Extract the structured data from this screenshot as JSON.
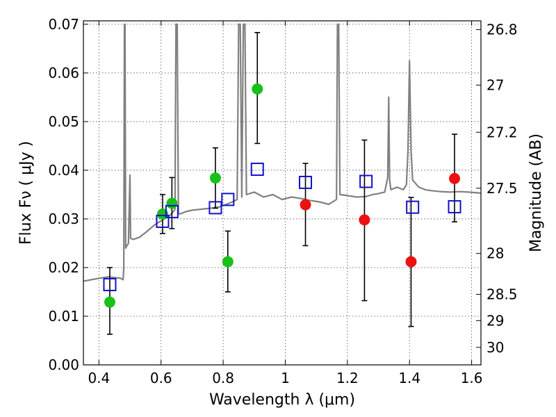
{
  "chart_data": {
    "type": "scatter",
    "xlabel": "Wavelength  λ (μm)",
    "ylabel": "Flux  Fν  ( μJy )",
    "y2label": "Magnitude (AB)",
    "xlim": [
      0.35,
      1.63
    ],
    "ylim": [
      0.0,
      0.0707
    ],
    "grid": true,
    "x_ticks": [
      {
        "value": 0.4,
        "label": "0.4"
      },
      {
        "value": 0.6,
        "label": "0.6"
      },
      {
        "value": 0.8,
        "label": "0.8"
      },
      {
        "value": 1.0,
        "label": "1"
      },
      {
        "value": 1.2,
        "label": "1.2"
      },
      {
        "value": 1.4,
        "label": "1.4"
      },
      {
        "value": 1.6,
        "label": "1.6"
      }
    ],
    "y_ticks": [
      {
        "value": 0.0,
        "label": "0.00"
      },
      {
        "value": 0.01,
        "label": "0.01"
      },
      {
        "value": 0.02,
        "label": "0.02"
      },
      {
        "value": 0.03,
        "label": "0.03"
      },
      {
        "value": 0.04,
        "label": "0.04"
      },
      {
        "value": 0.05,
        "label": "0.05"
      },
      {
        "value": 0.06,
        "label": "0.06"
      },
      {
        "value": 0.07,
        "label": "0.07"
      }
    ],
    "y2_ticks": [
      {
        "flux": 0.0689,
        "label": "26.8"
      },
      {
        "flux": 0.0575,
        "label": "27"
      },
      {
        "flux": 0.0478,
        "label": "27.2"
      },
      {
        "flux": 0.0363,
        "label": "27.5"
      },
      {
        "flux": 0.0229,
        "label": "28"
      },
      {
        "flux": 0.0145,
        "label": "28.5"
      },
      {
        "flux": 0.0091,
        "label": "29"
      },
      {
        "flux": 0.0036,
        "label": "30"
      }
    ],
    "spectrum": {
      "color": "#808080",
      "points": [
        [
          0.35,
          0.0172
        ],
        [
          0.4,
          0.0178
        ],
        [
          0.43,
          0.0181
        ],
        [
          0.47,
          0.0178
        ],
        [
          0.478,
          0.0175
        ],
        [
          0.48,
          0.02
        ],
        [
          0.482,
          0.07
        ],
        [
          0.484,
          0.07
        ],
        [
          0.486,
          0.024
        ],
        [
          0.49,
          0.0245
        ],
        [
          0.495,
          0.025
        ],
        [
          0.5,
          0.039
        ],
        [
          0.502,
          0.026
        ],
        [
          0.51,
          0.0258
        ],
        [
          0.53,
          0.0262
        ],
        [
          0.55,
          0.0272
        ],
        [
          0.58,
          0.0288
        ],
        [
          0.6,
          0.0296
        ],
        [
          0.61,
          0.03
        ],
        [
          0.62,
          0.0305
        ],
        [
          0.63,
          0.0308
        ],
        [
          0.64,
          0.0315
        ],
        [
          0.645,
          0.032
        ],
        [
          0.648,
          0.07
        ],
        [
          0.652,
          0.07
        ],
        [
          0.656,
          0.0312
        ],
        [
          0.66,
          0.031
        ],
        [
          0.68,
          0.0315
        ],
        [
          0.7,
          0.0318
        ],
        [
          0.73,
          0.032
        ],
        [
          0.76,
          0.0322
        ],
        [
          0.79,
          0.0325
        ],
        [
          0.81,
          0.033
        ],
        [
          0.83,
          0.0335
        ],
        [
          0.845,
          0.034
        ],
        [
          0.85,
          0.07
        ],
        [
          0.855,
          0.07
        ],
        [
          0.86,
          0.0345
        ],
        [
          0.865,
          0.07
        ],
        [
          0.87,
          0.07
        ],
        [
          0.875,
          0.035
        ],
        [
          0.9,
          0.0355
        ],
        [
          0.93,
          0.0345
        ],
        [
          0.96,
          0.035
        ],
        [
          0.99,
          0.034
        ],
        [
          1.02,
          0.0345
        ],
        [
          1.05,
          0.0342
        ],
        [
          1.08,
          0.0338
        ],
        [
          1.11,
          0.0335
        ],
        [
          1.14,
          0.033
        ],
        [
          1.165,
          0.034
        ],
        [
          1.168,
          0.07
        ],
        [
          1.172,
          0.07
        ],
        [
          1.176,
          0.035
        ],
        [
          1.2,
          0.0348
        ],
        [
          1.23,
          0.0345
        ],
        [
          1.26,
          0.0346
        ],
        [
          1.28,
          0.035
        ],
        [
          1.3,
          0.0352
        ],
        [
          1.32,
          0.0355
        ],
        [
          1.33,
          0.0385
        ],
        [
          1.333,
          0.055
        ],
        [
          1.336,
          0.038
        ],
        [
          1.34,
          0.036
        ],
        [
          1.36,
          0.0365
        ],
        [
          1.38,
          0.036
        ],
        [
          1.39,
          0.037
        ],
        [
          1.395,
          0.044
        ],
        [
          1.4,
          0.0625
        ],
        [
          1.405,
          0.044
        ],
        [
          1.41,
          0.038
        ],
        [
          1.43,
          0.0365
        ],
        [
          1.45,
          0.036
        ],
        [
          1.47,
          0.0358
        ],
        [
          1.5,
          0.0356
        ],
        [
          1.53,
          0.0355
        ],
        [
          1.56,
          0.0356
        ],
        [
          1.59,
          0.0355
        ],
        [
          1.63,
          0.0353
        ]
      ]
    },
    "series": [
      {
        "marker": "circle",
        "color": "#17c117",
        "points": [
          {
            "x": 0.435,
            "y": 0.0129,
            "err": [
              0.0063,
              0.02
            ]
          },
          {
            "x": 0.605,
            "y": 0.031,
            "err": [
              0.027,
              0.035
            ]
          },
          {
            "x": 0.635,
            "y": 0.0332,
            "err": [
              0.028,
              0.0385
            ]
          },
          {
            "x": 0.775,
            "y": 0.0384,
            "err": [
              0.0322,
              0.0446
            ]
          },
          {
            "x": 0.815,
            "y": 0.0212,
            "err": [
              0.015,
              0.0275
            ]
          },
          {
            "x": 0.91,
            "y": 0.0567,
            "err": [
              0.0455,
              0.0683
            ]
          }
        ]
      },
      {
        "marker": "circle",
        "color": "#ee1111",
        "points": [
          {
            "x": 1.065,
            "y": 0.0329,
            "err": [
              0.0245,
              0.0414
            ]
          },
          {
            "x": 1.255,
            "y": 0.0298,
            "err": [
              0.0132,
              0.0462
            ]
          },
          {
            "x": 1.405,
            "y": 0.0212,
            "err": [
              0.0079,
              0.0344
            ]
          },
          {
            "x": 1.545,
            "y": 0.0383,
            "err": [
              0.0294,
              0.0474
            ]
          }
        ]
      },
      {
        "marker": "open-square",
        "color": "#1111cc",
        "points": [
          {
            "x": 0.435,
            "y": 0.0165
          },
          {
            "x": 0.605,
            "y": 0.0295
          },
          {
            "x": 0.635,
            "y": 0.0315
          },
          {
            "x": 0.775,
            "y": 0.0323
          },
          {
            "x": 0.815,
            "y": 0.034
          },
          {
            "x": 0.91,
            "y": 0.0402
          },
          {
            "x": 1.065,
            "y": 0.0375
          },
          {
            "x": 1.26,
            "y": 0.0377
          },
          {
            "x": 1.41,
            "y": 0.0324
          },
          {
            "x": 1.545,
            "y": 0.0325
          }
        ]
      }
    ]
  }
}
